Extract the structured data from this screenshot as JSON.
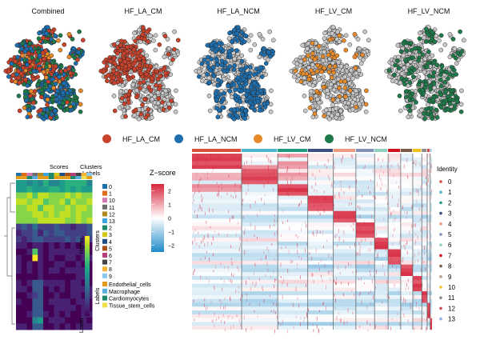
{
  "chart_data": [
    {
      "type": "scatter",
      "kind": "umap-split",
      "panels": [
        {
          "title": "Combined",
          "highlight": "all"
        },
        {
          "title": "HF_LA_CM",
          "highlight": "HF_LA_CM"
        },
        {
          "title": "HF_LA_NCM",
          "highlight": "HF_LA_NCM"
        },
        {
          "title": "HF_LV_CM",
          "highlight": "HF_LV_CM"
        },
        {
          "title": "HF_LV_NCM",
          "highlight": "HF_LV_NCM"
        }
      ],
      "background_color": "#c8c8c8",
      "legend": [
        {
          "label": "HF_LA_CM",
          "color": "#c8432c"
        },
        {
          "label": "HF_LA_NCM",
          "color": "#1d6fb0"
        },
        {
          "label": "HF_LV_CM",
          "color": "#e78a2a"
        },
        {
          "label": "HF_LV_NCM",
          "color": "#1f7a4a"
        }
      ],
      "legend_position": "bottom"
    },
    {
      "type": "heatmap",
      "kind": "annotation-score-heatmap",
      "top_labels": {
        "scores": "Scores",
        "clusters": "Clusters",
        "labels": "Labels"
      },
      "colorbar": {
        "title_high": "Higher",
        "title_low": "Lower",
        "colors": [
          "#440154",
          "#31688e",
          "#35b779",
          "#fde725"
        ]
      },
      "clusters_legend_title": "Clusters",
      "clusters": [
        {
          "id": "0",
          "color": "#1f6fa8"
        },
        {
          "id": "1",
          "color": "#e06a1c"
        },
        {
          "id": "10",
          "color": "#d478b0"
        },
        {
          "id": "11",
          "color": "#6e6e6e"
        },
        {
          "id": "12",
          "color": "#b08a1e"
        },
        {
          "id": "13",
          "color": "#3aa3dc"
        },
        {
          "id": "2",
          "color": "#1e8a6a"
        },
        {
          "id": "3",
          "color": "#cfc81a"
        },
        {
          "id": "4",
          "color": "#1e4e86"
        },
        {
          "id": "5",
          "color": "#a8501a"
        },
        {
          "id": "6",
          "color": "#b6407e"
        },
        {
          "id": "7",
          "color": "#444444"
        },
        {
          "id": "8",
          "color": "#f2b53a"
        },
        {
          "id": "9",
          "color": "#8cc8ec"
        }
      ],
      "labels_legend_title": "Labels",
      "labels": [
        {
          "name": "Endothelial_cells",
          "color": "#e39b1a"
        },
        {
          "name": "Macrophage",
          "color": "#5aaee0"
        },
        {
          "name": "Cardiomyocytes",
          "color": "#1e8a6a"
        },
        {
          "name": "Tissue_stem_cells",
          "color": "#efe04a"
        }
      ],
      "rows": 24,
      "cols": 14
    },
    {
      "type": "heatmap",
      "kind": "gene-expression-zscore",
      "colorbar": {
        "title": "Z−score",
        "ticks": [
          "2",
          "1",
          "0",
          "−1",
          "−2"
        ],
        "range": [
          -2.5,
          2.5
        ],
        "colors": [
          "#1f8ac9",
          "#ffffff",
          "#d7263d"
        ]
      },
      "identity_title": "Identity",
      "identities": [
        {
          "id": "0",
          "color": "#d6503a",
          "width": 0.165
        },
        {
          "id": "1",
          "color": "#4fb6d1",
          "width": 0.12
        },
        {
          "id": "2",
          "color": "#1c9a82",
          "width": 0.1
        },
        {
          "id": "3",
          "color": "#3b4f80",
          "width": 0.085
        },
        {
          "id": "4",
          "color": "#ec9a80",
          "width": 0.075
        },
        {
          "id": "5",
          "color": "#8391b8",
          "width": 0.062
        },
        {
          "id": "6",
          "color": "#8fd1be",
          "width": 0.045
        },
        {
          "id": "7",
          "color": "#d0101a",
          "width": 0.042
        },
        {
          "id": "8",
          "color": "#7a5c46",
          "width": 0.04
        },
        {
          "id": "9",
          "color": "#b0a08a",
          "width": 0.0
        },
        {
          "id": "10",
          "color": "#f2c21a",
          "width": 0.03
        },
        {
          "id": "11",
          "color": "#8c8c8c",
          "width": 0.018
        },
        {
          "id": "12",
          "color": "#c94a4a",
          "width": 0.01
        },
        {
          "id": "13",
          "color": "#8ab0e0",
          "width": 0.006
        }
      ],
      "block_order": [
        "0",
        "1",
        "2",
        "3",
        "4",
        "5",
        "6",
        "7",
        "8",
        "10",
        "11",
        "12",
        "13"
      ]
    }
  ]
}
